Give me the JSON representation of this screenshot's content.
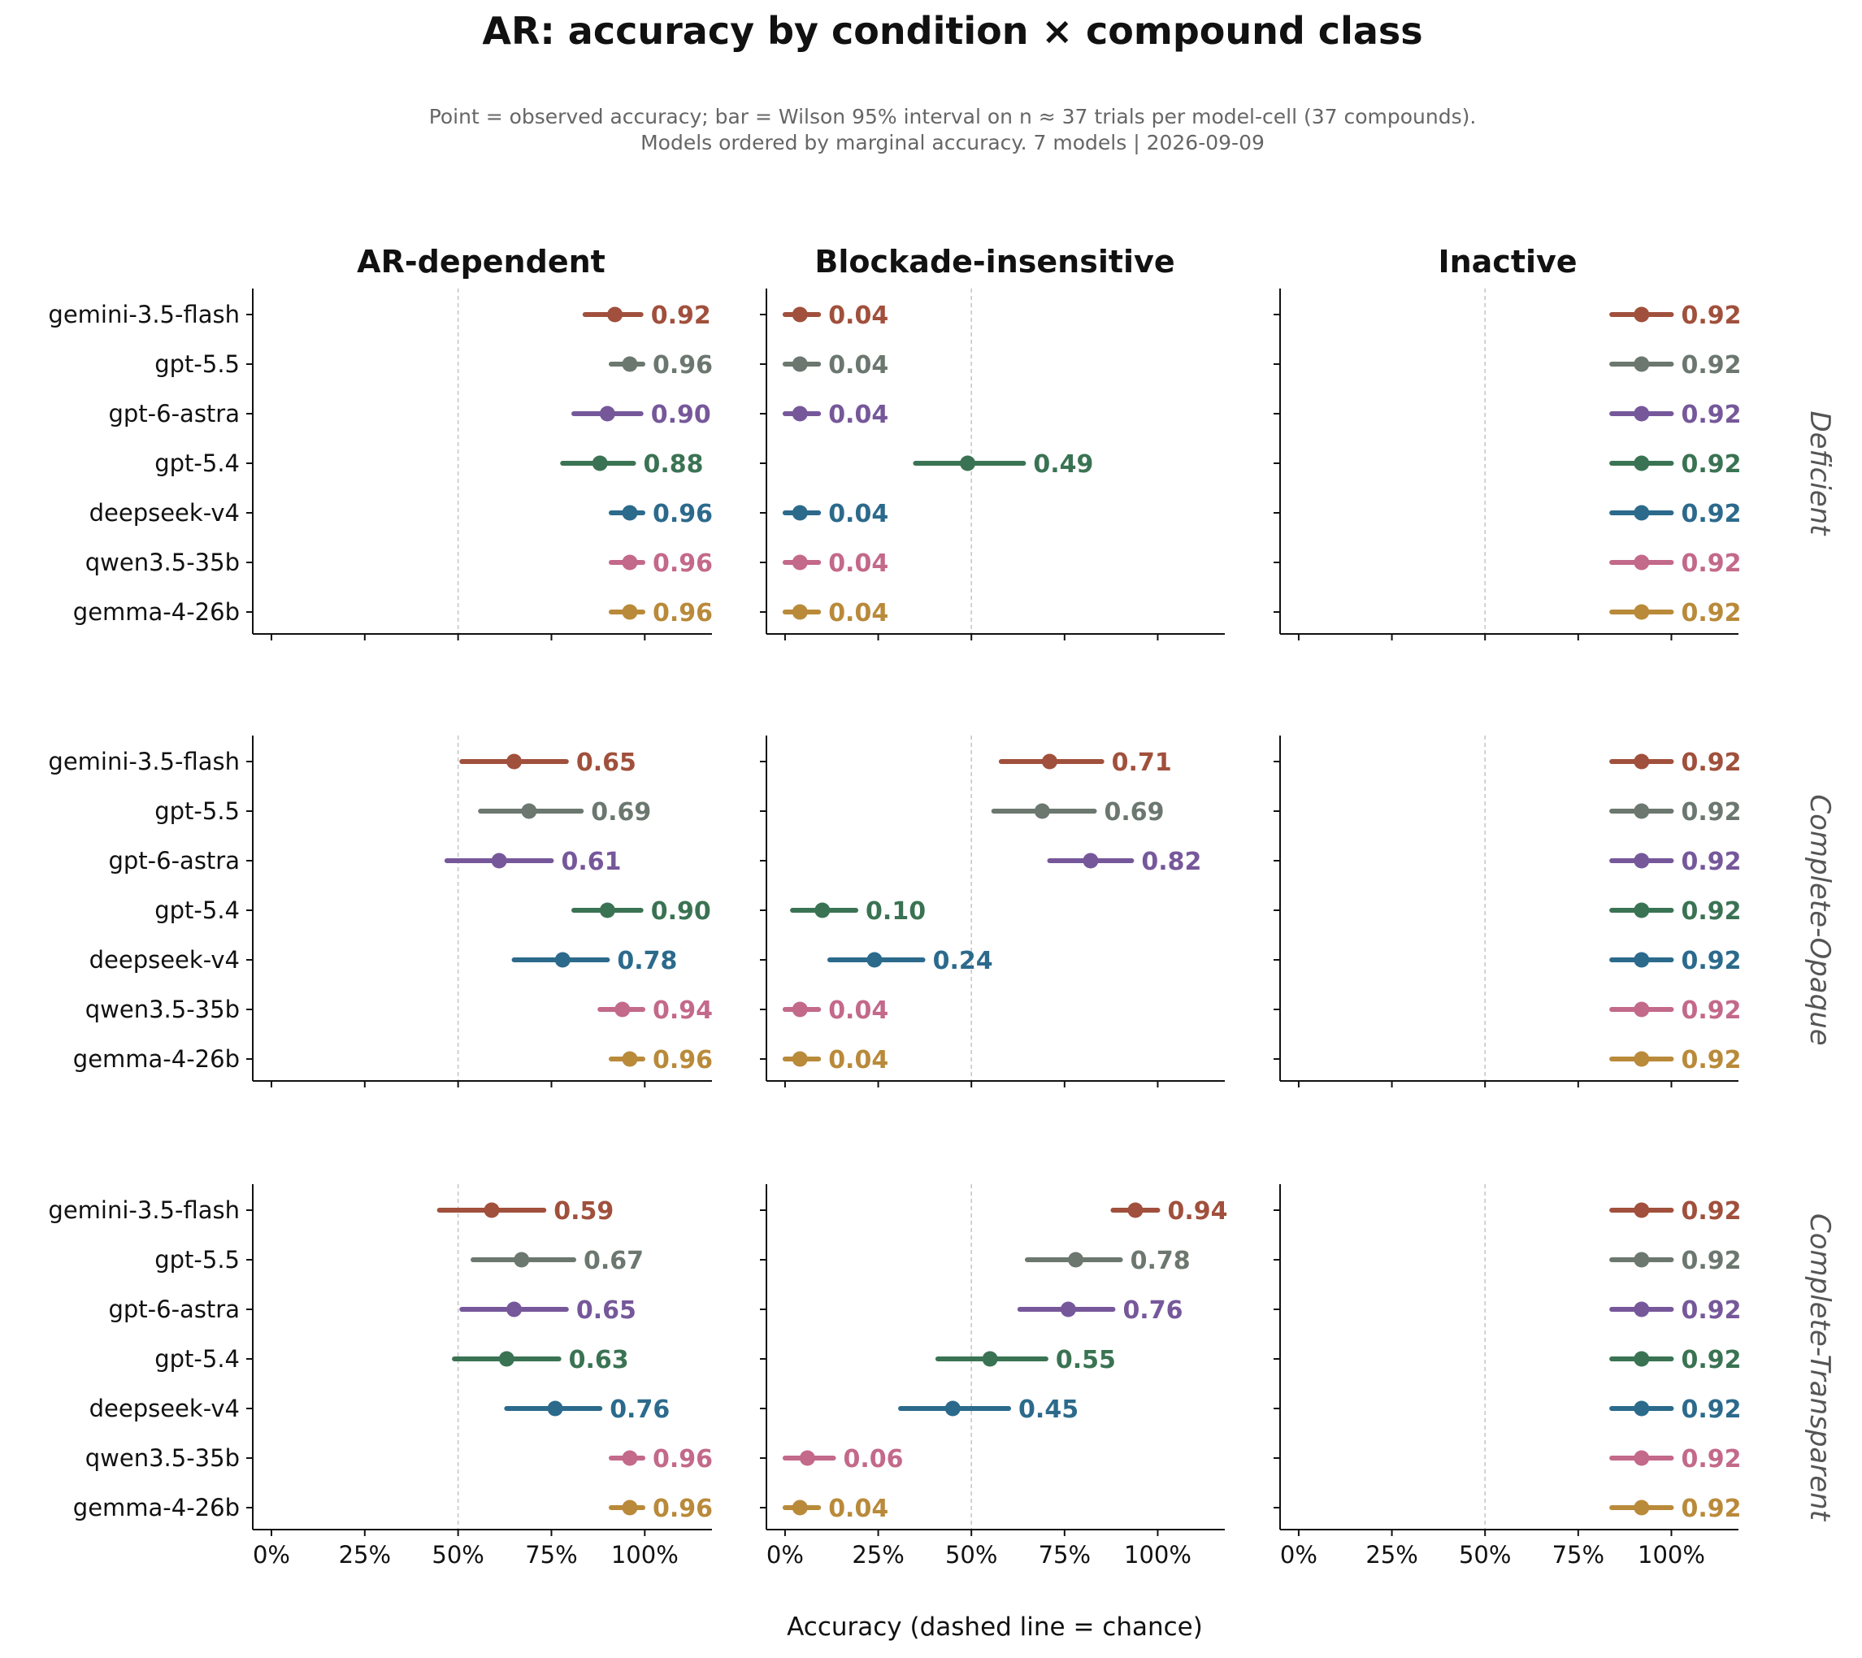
{
  "chart_data": {
    "type": "scatter",
    "title": "AR: accuracy by condition × compound class",
    "subtitle_lines": [
      "Point = observed accuracy;  bar = Wilson 95% interval on n ≈ 37 trials per model-cell (37 compounds).",
      "Models ordered by marginal accuracy.  7 models  |  2026-09-09"
    ],
    "xlabel": "Accuracy   (dashed line = chance)",
    "xlim": [
      -0.05,
      1.18
    ],
    "x_ticks": [
      0,
      0.25,
      0.5,
      0.75,
      1.0
    ],
    "x_tick_labels": [
      "0%",
      "25%",
      "50%",
      "75%",
      "100%"
    ],
    "chance_line": 0.5,
    "grid": false,
    "columns": [
      "AR-dependent",
      "Blockade-insensitive",
      "Inactive"
    ],
    "rows": [
      "Deficient",
      "Complete-Opaque",
      "Complete-Transparent"
    ],
    "models": [
      "gemini-3.5-flash",
      "gpt-5.5",
      "gpt-6-astra",
      "gpt-5.4",
      "deepseek-v4",
      "qwen3.5-35b",
      "gemma-4-26b"
    ],
    "model_colors": [
      "#a0503c",
      "#6b776f",
      "#76589a",
      "#3a7353",
      "#2c6a8c",
      "#c3698a",
      "#b98a3a"
    ],
    "panels": [
      {
        "row": "Deficient",
        "column": "AR-dependent",
        "points": [
          {
            "model": "gemini-3.5-flash",
            "value": 0.92,
            "label": "0.92",
            "ci": [
              0.84,
              0.99
            ]
          },
          {
            "model": "gpt-5.5",
            "value": 0.96,
            "label": "0.96",
            "ci": [
              0.91,
              0.995
            ]
          },
          {
            "model": "gpt-6-astra",
            "value": 0.9,
            "label": "0.90",
            "ci": [
              0.81,
              0.99
            ]
          },
          {
            "model": "gpt-5.4",
            "value": 0.88,
            "label": "0.88",
            "ci": [
              0.78,
              0.97
            ]
          },
          {
            "model": "deepseek-v4",
            "value": 0.96,
            "label": "0.96",
            "ci": [
              0.91,
              0.995
            ]
          },
          {
            "model": "qwen3.5-35b",
            "value": 0.96,
            "label": "0.96",
            "ci": [
              0.91,
              0.995
            ]
          },
          {
            "model": "gemma-4-26b",
            "value": 0.96,
            "label": "0.96",
            "ci": [
              0.91,
              0.995
            ]
          }
        ]
      },
      {
        "row": "Deficient",
        "column": "Blockade-insensitive",
        "points": [
          {
            "model": "gemini-3.5-flash",
            "value": 0.04,
            "label": "0.04",
            "ci": [
              0.0,
              0.09
            ]
          },
          {
            "model": "gpt-5.5",
            "value": 0.04,
            "label": "0.04",
            "ci": [
              0.0,
              0.09
            ]
          },
          {
            "model": "gpt-6-astra",
            "value": 0.04,
            "label": "0.04",
            "ci": [
              0.0,
              0.09
            ]
          },
          {
            "model": "gpt-5.4",
            "value": 0.49,
            "label": "0.49",
            "ci": [
              0.35,
              0.64
            ]
          },
          {
            "model": "deepseek-v4",
            "value": 0.04,
            "label": "0.04",
            "ci": [
              0.0,
              0.09
            ]
          },
          {
            "model": "qwen3.5-35b",
            "value": 0.04,
            "label": "0.04",
            "ci": [
              0.0,
              0.09
            ]
          },
          {
            "model": "gemma-4-26b",
            "value": 0.04,
            "label": "0.04",
            "ci": [
              0.0,
              0.09
            ]
          }
        ]
      },
      {
        "row": "Deficient",
        "column": "Inactive",
        "points": [
          {
            "model": "gemini-3.5-flash",
            "value": 0.92,
            "label": "0.92",
            "ci": [
              0.84,
              1.0
            ]
          },
          {
            "model": "gpt-5.5",
            "value": 0.92,
            "label": "0.92",
            "ci": [
              0.84,
              1.0
            ]
          },
          {
            "model": "gpt-6-astra",
            "value": 0.92,
            "label": "0.92",
            "ci": [
              0.84,
              1.0
            ]
          },
          {
            "model": "gpt-5.4",
            "value": 0.92,
            "label": "0.92",
            "ci": [
              0.84,
              1.0
            ]
          },
          {
            "model": "deepseek-v4",
            "value": 0.92,
            "label": "0.92",
            "ci": [
              0.84,
              1.0
            ]
          },
          {
            "model": "qwen3.5-35b",
            "value": 0.92,
            "label": "0.92",
            "ci": [
              0.84,
              1.0
            ]
          },
          {
            "model": "gemma-4-26b",
            "value": 0.92,
            "label": "0.92",
            "ci": [
              0.84,
              1.0
            ]
          }
        ]
      },
      {
        "row": "Complete-Opaque",
        "column": "AR-dependent",
        "points": [
          {
            "model": "gemini-3.5-flash",
            "value": 0.65,
            "label": "0.65",
            "ci": [
              0.51,
              0.79
            ]
          },
          {
            "model": "gpt-5.5",
            "value": 0.69,
            "label": "0.69",
            "ci": [
              0.56,
              0.83
            ]
          },
          {
            "model": "gpt-6-astra",
            "value": 0.61,
            "label": "0.61",
            "ci": [
              0.47,
              0.75
            ]
          },
          {
            "model": "gpt-5.4",
            "value": 0.9,
            "label": "0.90",
            "ci": [
              0.81,
              0.99
            ]
          },
          {
            "model": "deepseek-v4",
            "value": 0.78,
            "label": "0.78",
            "ci": [
              0.65,
              0.9
            ]
          },
          {
            "model": "qwen3.5-35b",
            "value": 0.94,
            "label": "0.94",
            "ci": [
              0.88,
              0.995
            ]
          },
          {
            "model": "gemma-4-26b",
            "value": 0.96,
            "label": "0.96",
            "ci": [
              0.91,
              0.995
            ]
          }
        ]
      },
      {
        "row": "Complete-Opaque",
        "column": "Blockade-insensitive",
        "points": [
          {
            "model": "gemini-3.5-flash",
            "value": 0.71,
            "label": "0.71",
            "ci": [
              0.58,
              0.85
            ]
          },
          {
            "model": "gpt-5.5",
            "value": 0.69,
            "label": "0.69",
            "ci": [
              0.56,
              0.83
            ]
          },
          {
            "model": "gpt-6-astra",
            "value": 0.82,
            "label": "0.82",
            "ci": [
              0.71,
              0.93
            ]
          },
          {
            "model": "gpt-5.4",
            "value": 0.1,
            "label": "0.10",
            "ci": [
              0.02,
              0.19
            ]
          },
          {
            "model": "deepseek-v4",
            "value": 0.24,
            "label": "0.24",
            "ci": [
              0.12,
              0.37
            ]
          },
          {
            "model": "qwen3.5-35b",
            "value": 0.04,
            "label": "0.04",
            "ci": [
              0.0,
              0.09
            ]
          },
          {
            "model": "gemma-4-26b",
            "value": 0.04,
            "label": "0.04",
            "ci": [
              0.0,
              0.09
            ]
          }
        ]
      },
      {
        "row": "Complete-Opaque",
        "column": "Inactive",
        "points": [
          {
            "model": "gemini-3.5-flash",
            "value": 0.92,
            "label": "0.92",
            "ci": [
              0.84,
              1.0
            ]
          },
          {
            "model": "gpt-5.5",
            "value": 0.92,
            "label": "0.92",
            "ci": [
              0.84,
              1.0
            ]
          },
          {
            "model": "gpt-6-astra",
            "value": 0.92,
            "label": "0.92",
            "ci": [
              0.84,
              1.0
            ]
          },
          {
            "model": "gpt-5.4",
            "value": 0.92,
            "label": "0.92",
            "ci": [
              0.84,
              1.0
            ]
          },
          {
            "model": "deepseek-v4",
            "value": 0.92,
            "label": "0.92",
            "ci": [
              0.84,
              1.0
            ]
          },
          {
            "model": "qwen3.5-35b",
            "value": 0.92,
            "label": "0.92",
            "ci": [
              0.84,
              1.0
            ]
          },
          {
            "model": "gemma-4-26b",
            "value": 0.92,
            "label": "0.92",
            "ci": [
              0.84,
              1.0
            ]
          }
        ]
      },
      {
        "row": "Complete-Transparent",
        "column": "AR-dependent",
        "points": [
          {
            "model": "gemini-3.5-flash",
            "value": 0.59,
            "label": "0.59",
            "ci": [
              0.45,
              0.73
            ]
          },
          {
            "model": "gpt-5.5",
            "value": 0.67,
            "label": "0.67",
            "ci": [
              0.54,
              0.81
            ]
          },
          {
            "model": "gpt-6-astra",
            "value": 0.65,
            "label": "0.65",
            "ci": [
              0.51,
              0.79
            ]
          },
          {
            "model": "gpt-5.4",
            "value": 0.63,
            "label": "0.63",
            "ci": [
              0.49,
              0.77
            ]
          },
          {
            "model": "deepseek-v4",
            "value": 0.76,
            "label": "0.76",
            "ci": [
              0.63,
              0.88
            ]
          },
          {
            "model": "qwen3.5-35b",
            "value": 0.96,
            "label": "0.96",
            "ci": [
              0.91,
              0.995
            ]
          },
          {
            "model": "gemma-4-26b",
            "value": 0.96,
            "label": "0.96",
            "ci": [
              0.91,
              0.995
            ]
          }
        ]
      },
      {
        "row": "Complete-Transparent",
        "column": "Blockade-insensitive",
        "points": [
          {
            "model": "gemini-3.5-flash",
            "value": 0.94,
            "label": "0.94",
            "ci": [
              0.88,
              1.0
            ]
          },
          {
            "model": "gpt-5.5",
            "value": 0.78,
            "label": "0.78",
            "ci": [
              0.65,
              0.9
            ]
          },
          {
            "model": "gpt-6-astra",
            "value": 0.76,
            "label": "0.76",
            "ci": [
              0.63,
              0.88
            ]
          },
          {
            "model": "gpt-5.4",
            "value": 0.55,
            "label": "0.55",
            "ci": [
              0.41,
              0.7
            ]
          },
          {
            "model": "deepseek-v4",
            "value": 0.45,
            "label": "0.45",
            "ci": [
              0.31,
              0.6
            ]
          },
          {
            "model": "qwen3.5-35b",
            "value": 0.06,
            "label": "0.06",
            "ci": [
              0.0,
              0.13
            ]
          },
          {
            "model": "gemma-4-26b",
            "value": 0.04,
            "label": "0.04",
            "ci": [
              0.0,
              0.09
            ]
          }
        ]
      },
      {
        "row": "Complete-Transparent",
        "column": "Inactive",
        "points": [
          {
            "model": "gemini-3.5-flash",
            "value": 0.92,
            "label": "0.92",
            "ci": [
              0.84,
              1.0
            ]
          },
          {
            "model": "gpt-5.5",
            "value": 0.92,
            "label": "0.92",
            "ci": [
              0.84,
              1.0
            ]
          },
          {
            "model": "gpt-6-astra",
            "value": 0.92,
            "label": "0.92",
            "ci": [
              0.84,
              1.0
            ]
          },
          {
            "model": "gpt-5.4",
            "value": 0.92,
            "label": "0.92",
            "ci": [
              0.84,
              1.0
            ]
          },
          {
            "model": "deepseek-v4",
            "value": 0.92,
            "label": "0.92",
            "ci": [
              0.84,
              1.0
            ]
          },
          {
            "model": "qwen3.5-35b",
            "value": 0.92,
            "label": "0.92",
            "ci": [
              0.84,
              1.0
            ]
          },
          {
            "model": "gemma-4-26b",
            "value": 0.92,
            "label": "0.92",
            "ci": [
              0.84,
              1.0
            ]
          }
        ]
      }
    ]
  }
}
